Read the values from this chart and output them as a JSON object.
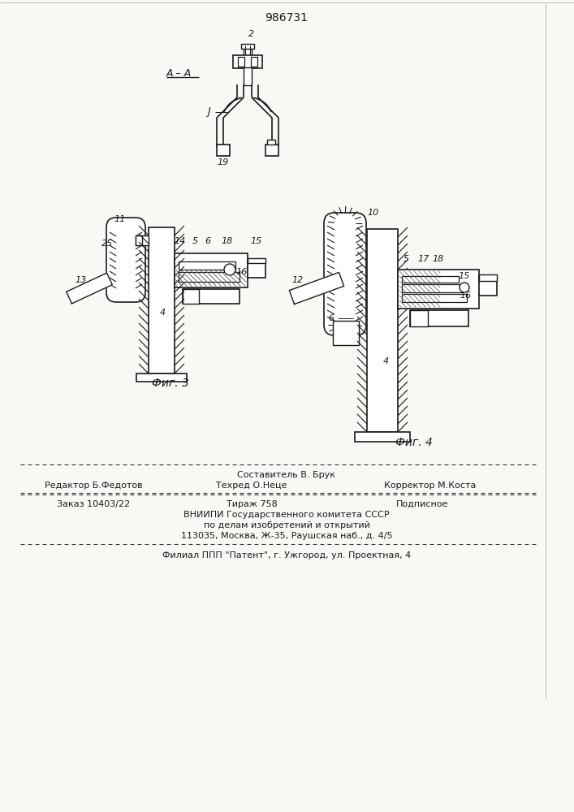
{
  "patent_number": "986731",
  "bg": "#f8f8f5",
  "lc": "#1a1a1a",
  "tc": "#1a1a1a",
  "footer_sestavitel": "Составитель В. Брук",
  "footer_redaktor": "Редактор Б.Федотов",
  "footer_tehred": "Техред О.Неце",
  "footer_korrektor": "Корректор М.Коста",
  "footer_zakaz": "Заказ 10403/22",
  "footer_tirazh": "Тираж 758",
  "footer_podpisnoe": "Подписное",
  "footer_vniipи": "ВНИИПИ Государственного комитета СССР",
  "footer_po_delam": "по делам изобретений и открытий",
  "footer_address": "113035, Москва, Ж-35, Раушская наб., д. 4/5",
  "footer_filial": "Филиал ППП \"Патент\", г. Ужгород, ул. Проектная, 4",
  "fig3_label": "Фиг. 3",
  "fig4_label": "Фиг. 4"
}
